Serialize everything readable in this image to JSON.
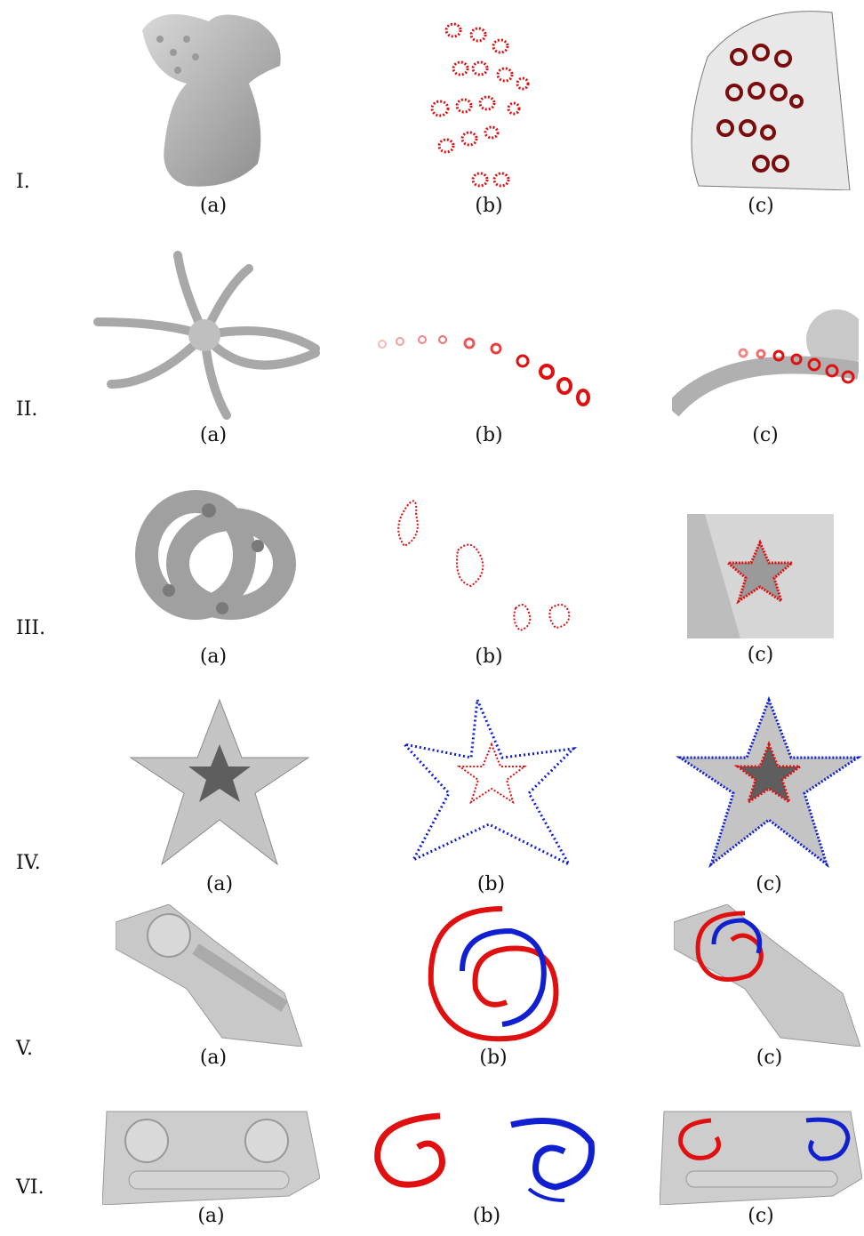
{
  "figure": {
    "rows": [
      {
        "label": "I.",
        "captions": [
          "(a)",
          "(b)",
          "(c)"
        ]
      },
      {
        "label": "II.",
        "captions": [
          "(a)",
          "(b)",
          "(c)"
        ]
      },
      {
        "label": "III.",
        "captions": [
          "(a)",
          "(b)",
          "(c)"
        ]
      },
      {
        "label": "IV.",
        "captions": [
          "(a)",
          "(b)",
          "(c)"
        ]
      },
      {
        "label": "V.",
        "captions": [
          "(a)",
          "(b)",
          "(c)"
        ]
      },
      {
        "label": "VI.",
        "captions": [
          "(a)",
          "(b)",
          "(c)"
        ]
      }
    ],
    "colors": {
      "feature_red": "#e01010",
      "feature_blue": "#1020d0",
      "mesh_gray": "#b8b8b8"
    }
  }
}
